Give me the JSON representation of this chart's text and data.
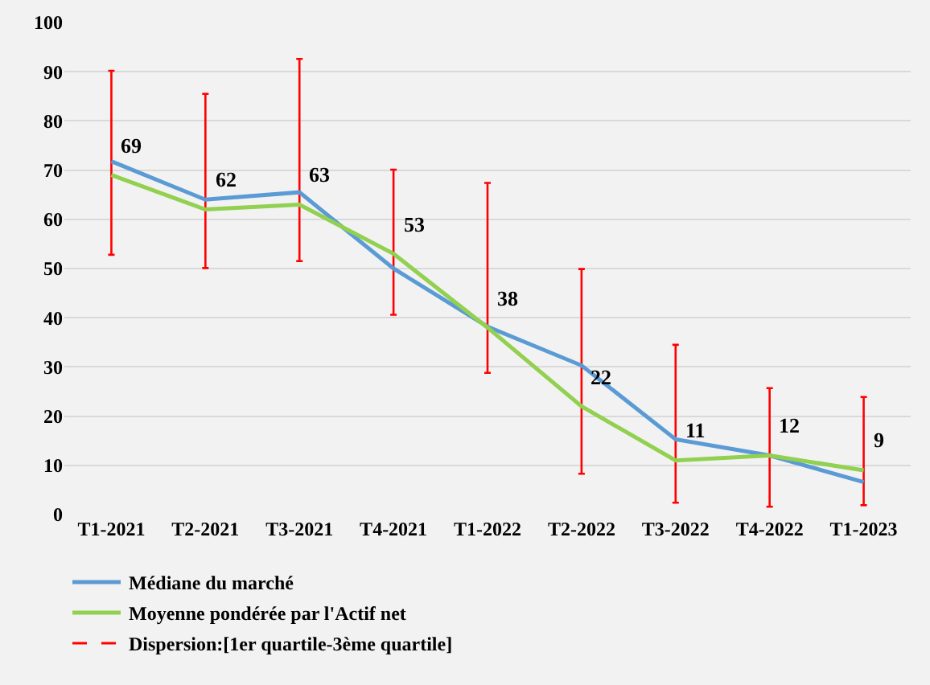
{
  "chart_data": {
    "type": "line",
    "categories": [
      "T1-2021",
      "T2-2021",
      "T3-2021",
      "T4-2021",
      "T1-2022",
      "T2-2022",
      "T3-2022",
      "T4-2022",
      "T1-2023"
    ],
    "series": [
      {
        "name": "Médiane du marché",
        "color": "#5b9bd5",
        "values": [
          71.8,
          64,
          65.5,
          50,
          38.2,
          30.3,
          15.3,
          12,
          6.6
        ],
        "errors": [
          [
            52.8,
            90.2
          ],
          [
            50.1,
            85.5
          ],
          [
            51.5,
            92.6
          ],
          [
            40.6,
            70.1
          ],
          [
            28.8,
            67.4
          ],
          [
            8.3,
            49.9
          ],
          [
            2.4,
            34.5
          ],
          [
            1.6,
            25.7
          ],
          [
            1.9,
            23.9
          ]
        ]
      },
      {
        "name": "Moyenne pondérée par l'Actif net",
        "color": "#92d050",
        "values": [
          69,
          62,
          63,
          53,
          38,
          22,
          11,
          12,
          9
        ],
        "value_labels": [
          "69",
          "62",
          "63",
          "53",
          "38",
          "22",
          "11",
          "12",
          "9"
        ]
      }
    ],
    "annotations": [
      "Dispersion:[1er quartile-3ème quartile]"
    ],
    "ylim": [
      0,
      100
    ],
    "yticks": [
      0,
      10,
      20,
      30,
      40,
      50,
      60,
      70,
      80,
      90,
      100
    ],
    "grid": "y",
    "legend": "bottom",
    "marker": "none",
    "line_style": "solid"
  }
}
